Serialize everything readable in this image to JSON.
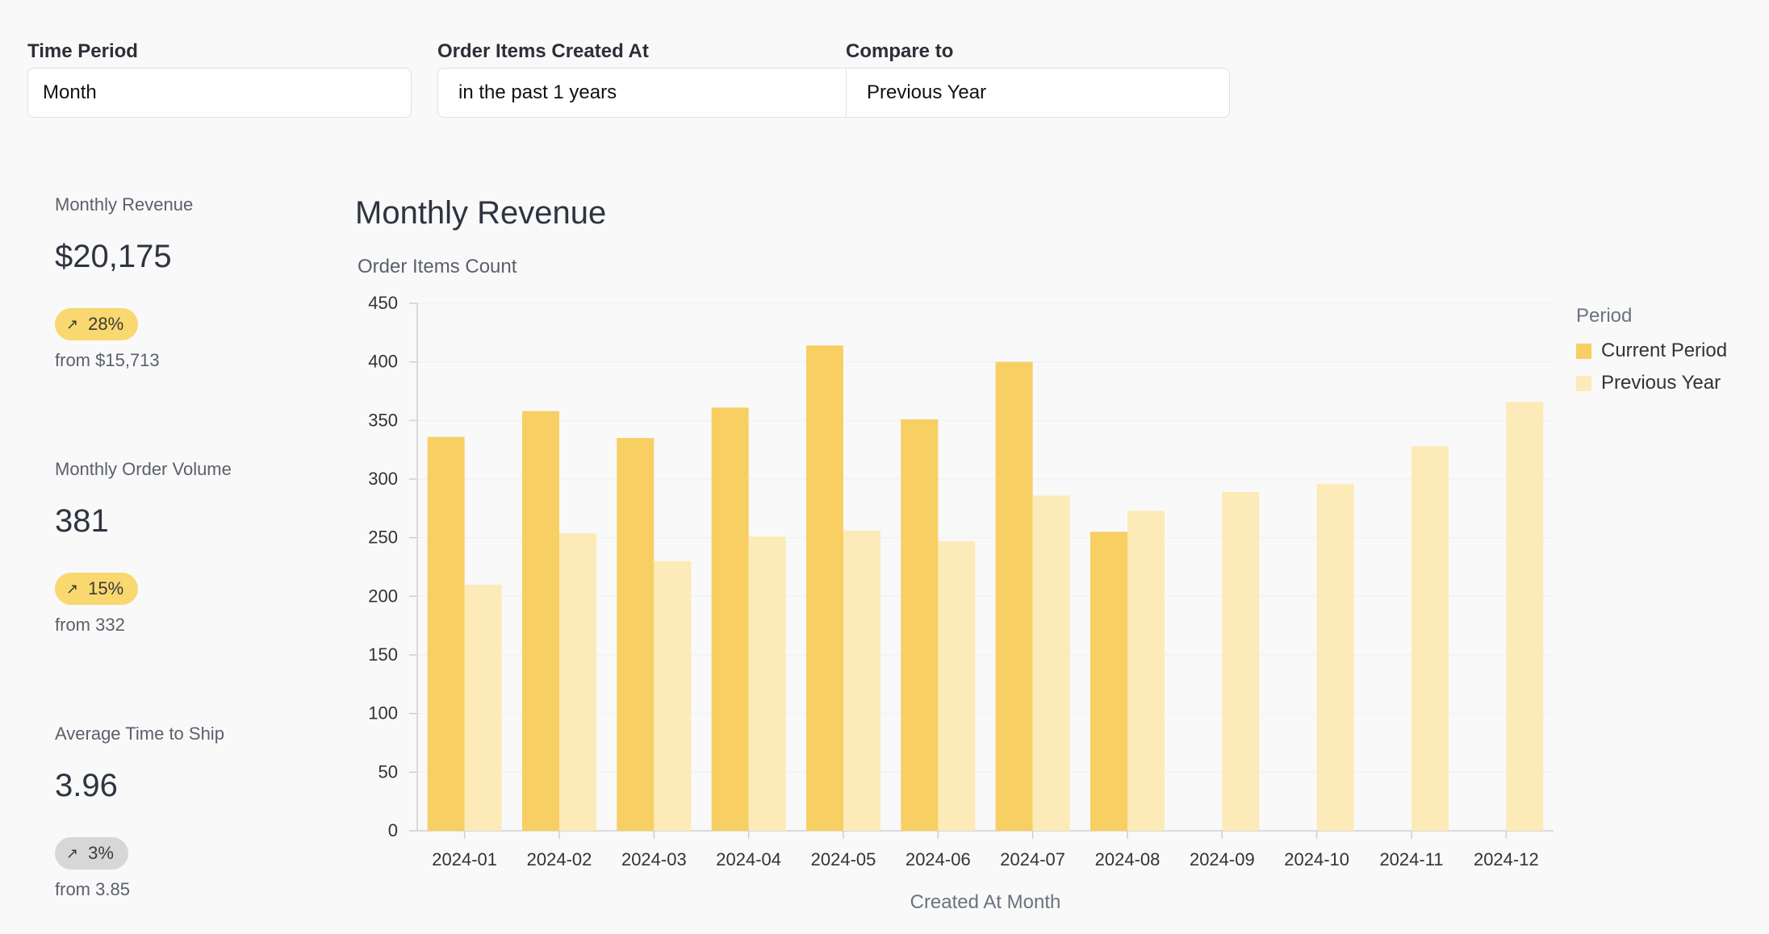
{
  "filters": {
    "time_period": {
      "label": "Time Period",
      "value": "Month"
    },
    "created_at": {
      "label": "Order Items Created At",
      "value": "in the past 1 years"
    },
    "compare_to": {
      "label": "Compare to",
      "value": "Previous Year"
    }
  },
  "kpis": [
    {
      "label": "Monthly Revenue",
      "value": "$20,175",
      "change": "28%",
      "from": "from $15,713",
      "badge_color": "#f8d86f"
    },
    {
      "label": "Monthly Order Volume",
      "value": "381",
      "change": "15%",
      "from": "from 332",
      "badge_color": "#f8d86f"
    },
    {
      "label": "Average Time to Ship",
      "value": "3.96",
      "change": "3%",
      "from": "from 3.85",
      "badge_color": "#d7d7d7"
    }
  ],
  "chart_title": "Monthly Revenue",
  "chart_data": {
    "type": "bar",
    "ylabel": "Order Items Count",
    "xlabel": "Created At Month",
    "ylim": [
      0,
      450
    ],
    "yticks": [
      0,
      50,
      100,
      150,
      200,
      250,
      300,
      350,
      400,
      450
    ],
    "categories": [
      "2024-01",
      "2024-02",
      "2024-03",
      "2024-04",
      "2024-05",
      "2024-06",
      "2024-07",
      "2024-08",
      "2024-09",
      "2024-10",
      "2024-11",
      "2024-12"
    ],
    "legend_title": "Period",
    "legend_position": "right",
    "grid": true,
    "series": [
      {
        "name": "Current Period",
        "color": "#f7cf62",
        "values": [
          336,
          358,
          335,
          361,
          414,
          351,
          400,
          255,
          null,
          null,
          null,
          null
        ]
      },
      {
        "name": "Previous Year",
        "color": "#fcebb8",
        "values": [
          210,
          254,
          230,
          251,
          256,
          247,
          286,
          273,
          289,
          296,
          328,
          366
        ]
      }
    ]
  }
}
